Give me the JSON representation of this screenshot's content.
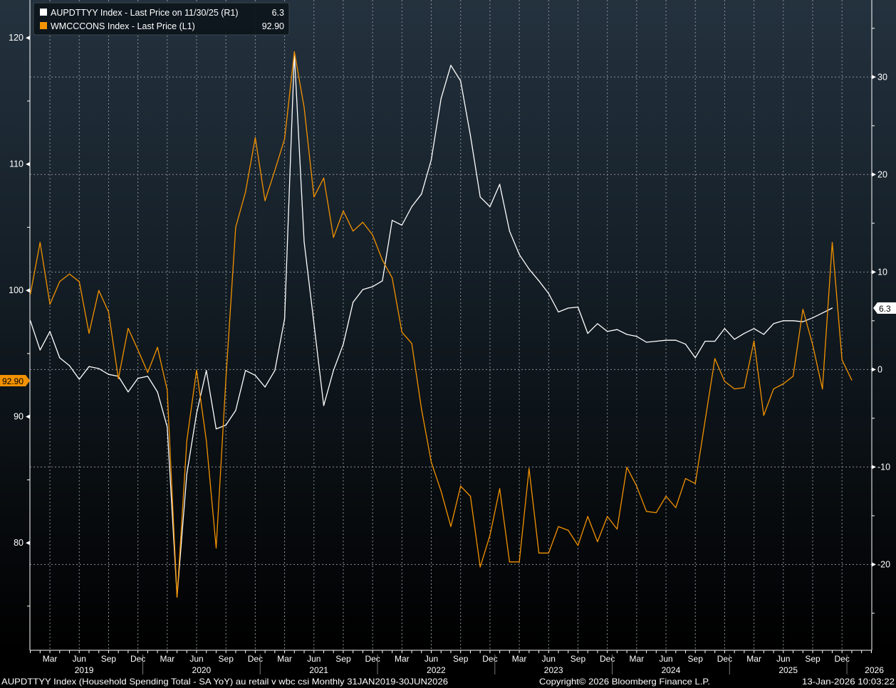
{
  "chart_data": {
    "type": "line",
    "x_start": "2019-01",
    "x_unit": "month",
    "x_range_months": [
      0,
      86
    ],
    "left_axis": {
      "ylim": [
        71.5,
        123
      ],
      "ticks": [
        80,
        90,
        100,
        110,
        120
      ],
      "labels": [
        "80",
        "90",
        "100",
        "110",
        "120"
      ]
    },
    "right_axis": {
      "ylim": [
        -28.8,
        37.9
      ],
      "ticks": [
        -20,
        -10,
        0,
        10,
        20,
        30
      ],
      "labels": [
        "-20",
        "-10",
        "0",
        "10",
        "20",
        "30"
      ]
    },
    "grid": true,
    "month_labels": [
      "Mar",
      "Jun",
      "Sep",
      "Dec"
    ],
    "month_label_index": [
      2,
      5,
      8,
      11
    ],
    "years": [
      "2019",
      "2020",
      "2021",
      "2022",
      "2023",
      "2024",
      "2025",
      "2026"
    ],
    "legend_position": "top-left",
    "series": [
      {
        "name": "AUPDTTYY Index - Last Price on 11/30/25 (R1)",
        "last_value": "6.3",
        "axis": "right",
        "color": "#ffffff",
        "values": [
          5.0,
          2.0,
          3.9,
          1.2,
          0.4,
          -1.0,
          0.3,
          0.1,
          -0.5,
          -0.7,
          -2.3,
          -0.9,
          -0.7,
          -2.3,
          -5.9,
          -23.3,
          -10.7,
          -4.5,
          -0.1,
          -6.1,
          -5.7,
          -4.2,
          -0.1,
          -0.6,
          -1.8,
          -0.1,
          5.2,
          32.4,
          13.1,
          4.7,
          -3.7,
          -0.1,
          2.6,
          6.9,
          8.2,
          8.5,
          9.1,
          15.3,
          14.8,
          16.7,
          18.0,
          21.5,
          27.8,
          31.2,
          29.6,
          24.0,
          17.7,
          16.7,
          19.0,
          14.2,
          11.8,
          10.3,
          9.1,
          7.8,
          5.9,
          6.3,
          6.4,
          3.7,
          4.7,
          3.9,
          4.1,
          3.6,
          3.4,
          2.8,
          2.9,
          3.0,
          3.0,
          2.6,
          1.2,
          2.9,
          2.9,
          4.2,
          3.1,
          3.7,
          4.2,
          3.6,
          4.7,
          5.0,
          5.0,
          4.9,
          5.3,
          5.8,
          6.3
        ]
      },
      {
        "name": "WMCCCONS Index - Last Price (L1)",
        "last_value": "92.90",
        "axis": "left",
        "color": "#f39200",
        "values": [
          99.7,
          103.8,
          98.9,
          100.7,
          101.3,
          100.7,
          96.6,
          100.0,
          98.3,
          93.0,
          97.0,
          95.3,
          93.5,
          95.5,
          92.1,
          75.7,
          88.1,
          93.7,
          88.1,
          79.6,
          93.0,
          105.0,
          107.8,
          112.1,
          107.1,
          109.5,
          112.0,
          118.9,
          114.5,
          107.4,
          108.9,
          104.2,
          106.3,
          104.7,
          105.4,
          104.4,
          102.4,
          101.0,
          96.7,
          95.8,
          90.6,
          86.4,
          84.1,
          81.3,
          84.5,
          83.7,
          78.1,
          80.6,
          84.3,
          78.5,
          78.5,
          85.9,
          79.2,
          79.2,
          81.3,
          81.0,
          79.8,
          82.1,
          80.1,
          82.1,
          81.1,
          86.0,
          84.5,
          82.5,
          82.4,
          83.7,
          82.8,
          85.1,
          84.7,
          89.7,
          94.6,
          92.8,
          92.2,
          92.3,
          96.0,
          90.1,
          92.2,
          92.6,
          93.2,
          98.5,
          95.7,
          92.2,
          103.8,
          94.5,
          92.9
        ]
      }
    ]
  },
  "footer": {
    "description": "AUPDTTYY Index (Household Spending Total - SA YoY) au retail v wbc csi Monthly 31JAN2019-30JUN2026",
    "copyright": "Copyright© 2026 Bloomberg Finance L.P.",
    "timestamp": "13-Jan-2026 10:03:22"
  }
}
